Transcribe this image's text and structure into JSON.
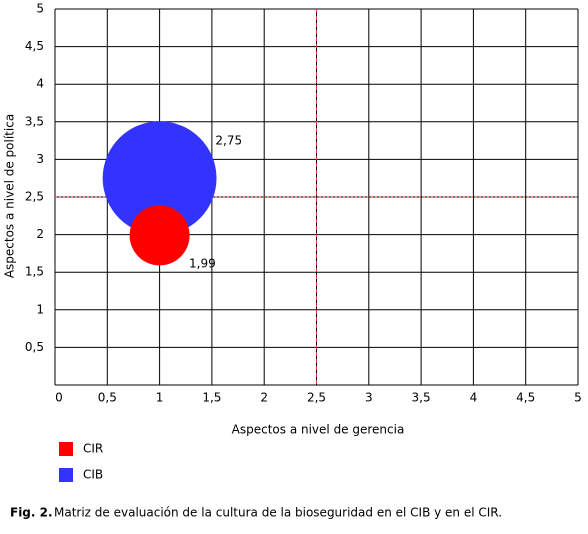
{
  "chart_data": {
    "type": "bubble",
    "x_label": "Aspectos a nivel de gerencia",
    "y_label": "Aspectos a nivel de política",
    "xlim": [
      0,
      5
    ],
    "ylim": [
      0,
      5
    ],
    "xticks": [
      0,
      {
        "value": 0.5,
        "label": "0,5"
      },
      1,
      {
        "value": 1.5,
        "label": "1,5"
      },
      2,
      {
        "value": 2.5,
        "label": "2,5"
      },
      3,
      {
        "value": 3.5,
        "label": "3,5"
      },
      4,
      {
        "value": 4.5,
        "label": "4,5"
      },
      5
    ],
    "yticks": [
      {
        "value": 0.5,
        "label": "0,5"
      },
      1,
      {
        "value": 1.5,
        "label": "1,5"
      },
      2,
      {
        "value": 2.5,
        "label": "2,5"
      },
      3,
      {
        "value": 3.5,
        "label": "3,5"
      },
      4,
      {
        "value": 4.5,
        "label": "4,5"
      },
      5
    ],
    "grid": true,
    "reference_lines": {
      "x": 2.5,
      "y": 2.5,
      "color": "#e03030"
    },
    "series": [
      {
        "name": "CIR",
        "color": "#ff0000",
        "x": [
          1
        ],
        "values": [
          1.99
        ],
        "value_labels": [
          "1,99"
        ],
        "sizes": [
          1
        ]
      },
      {
        "name": "CIB",
        "color": "#3333ff",
        "x": [
          1
        ],
        "values": [
          2.75
        ],
        "value_labels": [
          "2,75"
        ],
        "sizes": [
          3.6
        ]
      }
    ],
    "caption": {
      "label": "Fig. 2.",
      "text": "Matriz de evaluación de la cultura de la bioseguridad en el CIB y en el CIR."
    }
  }
}
